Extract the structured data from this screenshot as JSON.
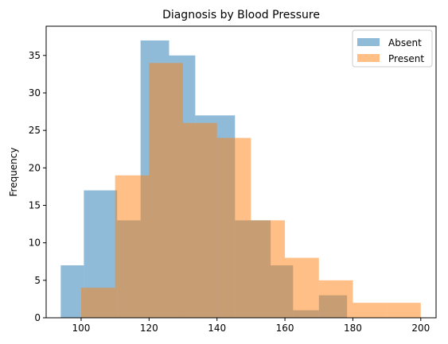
{
  "chart_data": {
    "type": "bar",
    "title": "Diagnosis by Blood Pressure",
    "xlabel": "",
    "ylabel": "Frequency",
    "xlim": [
      89.7,
      204.5
    ],
    "ylim": [
      0,
      38.9
    ],
    "xticks": [
      100,
      120,
      140,
      160,
      180,
      200
    ],
    "yticks": [
      0,
      5,
      10,
      15,
      20,
      25,
      30,
      35
    ],
    "legend": "top-right",
    "grid": false,
    "series": [
      {
        "name": "Absent",
        "color": "#1f77b4",
        "bins": [
          94,
          100.8,
          110.6,
          117.5,
          125.9,
          133.6,
          145.3,
          155.8,
          162.4,
          170.0,
          178.3
        ],
        "values": [
          7,
          17,
          13,
          37,
          35,
          27,
          13,
          7,
          1,
          3
        ]
      },
      {
        "name": "Present",
        "color": "#ff7f0e",
        "bins": [
          100,
          110,
          120,
          130,
          140,
          150,
          160,
          170,
          180,
          190,
          200
        ],
        "values": [
          4,
          19,
          34,
          26,
          24,
          13,
          8,
          5,
          2,
          2
        ]
      }
    ]
  }
}
